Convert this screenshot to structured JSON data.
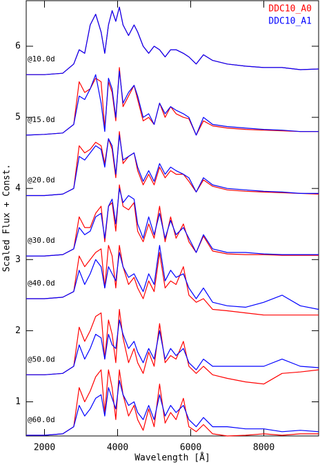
{
  "chart_data": {
    "type": "line",
    "x_label": "Wavelength  [Å]",
    "y_label": "Scaled Flux + Const.",
    "xlim": [
      1500,
      9500
    ],
    "ylim": [
      0.52,
      6.64
    ],
    "xticks": [
      2000,
      4000,
      6000,
      8000
    ],
    "yticks": [
      1,
      2,
      3,
      4,
      5,
      6
    ],
    "legend": [
      {
        "name": "DDC10_A0",
        "color": "#ff0000"
      },
      {
        "name": "DDC10_A1",
        "color": "#0000ff"
      }
    ],
    "x": [
      1500,
      2000,
      2500,
      2800,
      2950,
      3100,
      3250,
      3400,
      3550,
      3650,
      3750,
      3850,
      3950,
      4050,
      4150,
      4300,
      4450,
      4550,
      4700,
      4850,
      5000,
      5150,
      5300,
      5450,
      5600,
      5800,
      5950,
      6150,
      6350,
      6600,
      7000,
      7500,
      8000,
      8500,
      9000,
      9500
    ],
    "epochs": [
      {
        "label": "@10.0d",
        "series": [
          [
            5.6,
            5.6,
            5.62,
            5.75,
            5.95,
            5.9,
            6.3,
            6.45,
            6.2,
            5.9,
            6.3,
            6.5,
            6.35,
            6.55,
            6.3,
            6.15,
            6.3,
            6.2,
            6.0,
            5.9,
            6.0,
            5.95,
            5.85,
            5.95,
            5.95,
            5.9,
            5.85,
            5.75,
            5.88,
            5.8,
            5.75,
            5.72,
            5.7,
            5.7,
            5.67,
            5.68
          ],
          [
            5.6,
            5.6,
            5.62,
            5.75,
            5.95,
            5.9,
            6.3,
            6.45,
            6.2,
            5.9,
            6.3,
            6.5,
            6.35,
            6.55,
            6.3,
            6.15,
            6.3,
            6.2,
            6.0,
            5.9,
            6.0,
            5.95,
            5.85,
            5.95,
            5.95,
            5.9,
            5.85,
            5.75,
            5.88,
            5.8,
            5.75,
            5.72,
            5.7,
            5.7,
            5.67,
            5.68
          ]
        ]
      },
      {
        "label": "@15.0d",
        "series": [
          [
            4.75,
            4.76,
            4.78,
            4.9,
            5.5,
            5.35,
            5.4,
            5.55,
            5.5,
            4.85,
            5.5,
            5.35,
            4.95,
            5.7,
            5.15,
            5.3,
            5.45,
            5.25,
            4.95,
            5.0,
            4.9,
            5.2,
            5.0,
            5.15,
            5.05,
            5.0,
            4.98,
            4.75,
            4.95,
            4.88,
            4.85,
            4.83,
            4.82,
            4.81,
            4.8,
            4.8
          ],
          [
            4.75,
            4.76,
            4.78,
            4.9,
            5.3,
            5.25,
            5.4,
            5.6,
            5.2,
            4.8,
            5.55,
            5.4,
            5.0,
            5.65,
            5.2,
            5.35,
            5.45,
            5.3,
            5.0,
            5.05,
            4.9,
            5.2,
            5.05,
            5.15,
            5.1,
            5.05,
            5.0,
            4.75,
            5.0,
            4.9,
            4.87,
            4.85,
            4.83,
            4.82,
            4.8,
            4.8
          ]
        ]
      },
      {
        "label": "@20.0d",
        "series": [
          [
            3.9,
            3.9,
            3.92,
            4.0,
            4.6,
            4.5,
            4.55,
            4.65,
            4.6,
            4.35,
            4.7,
            4.55,
            4.15,
            4.8,
            4.35,
            4.45,
            4.5,
            4.25,
            4.05,
            4.2,
            4.05,
            4.3,
            4.15,
            4.25,
            4.2,
            4.2,
            4.1,
            3.95,
            4.12,
            4.03,
            3.98,
            3.96,
            3.95,
            3.94,
            3.93,
            3.92
          ],
          [
            3.9,
            3.9,
            3.92,
            4.0,
            4.45,
            4.4,
            4.5,
            4.6,
            4.55,
            4.3,
            4.7,
            4.6,
            4.2,
            4.75,
            4.4,
            4.45,
            4.5,
            4.3,
            4.1,
            4.25,
            4.1,
            4.35,
            4.2,
            4.3,
            4.25,
            4.2,
            4.15,
            3.95,
            4.15,
            4.05,
            4.0,
            3.98,
            3.96,
            3.95,
            3.93,
            3.93
          ]
        ]
      },
      {
        "label": "@30.0d",
        "series": [
          [
            3.05,
            3.05,
            3.07,
            3.15,
            3.6,
            3.45,
            3.45,
            3.65,
            3.75,
            3.25,
            3.75,
            3.8,
            3.4,
            4.05,
            3.75,
            3.7,
            3.8,
            3.4,
            3.25,
            3.5,
            3.3,
            3.75,
            3.25,
            3.6,
            3.3,
            3.5,
            3.25,
            3.1,
            3.33,
            3.12,
            3.08,
            3.07,
            3.07,
            3.06,
            3.06,
            3.06
          ],
          [
            3.05,
            3.05,
            3.07,
            3.15,
            3.45,
            3.35,
            3.4,
            3.6,
            3.65,
            3.3,
            3.75,
            3.85,
            3.5,
            4.0,
            3.8,
            3.9,
            3.85,
            3.5,
            3.3,
            3.6,
            3.35,
            3.65,
            3.3,
            3.55,
            3.35,
            3.45,
            3.3,
            3.1,
            3.35,
            3.15,
            3.1,
            3.1,
            3.08,
            3.07,
            3.07,
            3.07
          ]
        ]
      },
      {
        "label": "@40.0d",
        "series": [
          [
            2.45,
            2.45,
            2.47,
            2.55,
            3.05,
            2.9,
            3.0,
            3.1,
            3.15,
            2.6,
            3.2,
            3.05,
            2.6,
            3.2,
            2.9,
            2.65,
            2.75,
            2.6,
            2.45,
            2.7,
            2.55,
            3.1,
            2.6,
            2.7,
            2.65,
            2.9,
            2.5,
            2.4,
            2.45,
            2.3,
            2.28,
            2.25,
            2.22,
            2.22,
            2.22,
            2.22
          ],
          [
            2.45,
            2.45,
            2.47,
            2.55,
            2.85,
            2.65,
            2.8,
            3.0,
            2.9,
            2.6,
            2.9,
            2.8,
            2.7,
            3.1,
            2.9,
            2.75,
            2.8,
            2.7,
            2.55,
            2.8,
            2.65,
            3.2,
            2.7,
            2.85,
            2.75,
            2.8,
            2.6,
            2.45,
            2.6,
            2.4,
            2.35,
            2.33,
            2.4,
            2.5,
            2.35,
            2.3
          ]
        ]
      },
      {
        "label": "@50.0d",
        "series": [
          [
            1.38,
            1.38,
            1.4,
            1.5,
            2.05,
            1.85,
            2.0,
            2.2,
            2.25,
            1.6,
            2.15,
            1.95,
            1.55,
            2.3,
            1.9,
            1.55,
            1.75,
            1.55,
            1.4,
            1.7,
            1.5,
            2.1,
            1.55,
            1.65,
            1.6,
            1.85,
            1.5,
            1.4,
            1.5,
            1.38,
            1.33,
            1.28,
            1.25,
            1.4,
            1.42,
            1.45
          ],
          [
            1.38,
            1.38,
            1.4,
            1.5,
            1.8,
            1.6,
            1.75,
            1.95,
            1.9,
            1.6,
            1.95,
            1.8,
            1.75,
            2.15,
            1.95,
            1.75,
            1.85,
            1.7,
            1.55,
            1.75,
            1.6,
            2.0,
            1.6,
            1.75,
            1.65,
            1.75,
            1.55,
            1.45,
            1.6,
            1.5,
            1.5,
            1.5,
            1.5,
            1.6,
            1.5,
            1.48
          ]
        ]
      },
      {
        "label": "@60.0d",
        "series": [
          [
            0.53,
            0.53,
            0.55,
            0.65,
            1.2,
            1.0,
            1.15,
            1.35,
            1.45,
            0.85,
            1.45,
            1.2,
            0.75,
            1.45,
            1.1,
            0.8,
            0.95,
            0.75,
            0.6,
            0.9,
            0.65,
            1.25,
            0.7,
            0.85,
            0.75,
            1.05,
            0.65,
            0.58,
            0.68,
            0.55,
            0.52,
            0.53,
            0.55,
            0.53,
            0.55,
            0.55
          ],
          [
            0.53,
            0.53,
            0.55,
            0.65,
            0.95,
            0.8,
            0.9,
            1.05,
            1.1,
            0.8,
            1.2,
            1.05,
            0.9,
            1.3,
            1.1,
            0.95,
            1.0,
            0.85,
            0.75,
            0.95,
            0.75,
            1.1,
            0.8,
            0.95,
            0.85,
            0.95,
            0.75,
            0.65,
            0.78,
            0.65,
            0.65,
            0.62,
            0.62,
            0.58,
            0.6,
            0.58
          ]
        ]
      }
    ]
  }
}
